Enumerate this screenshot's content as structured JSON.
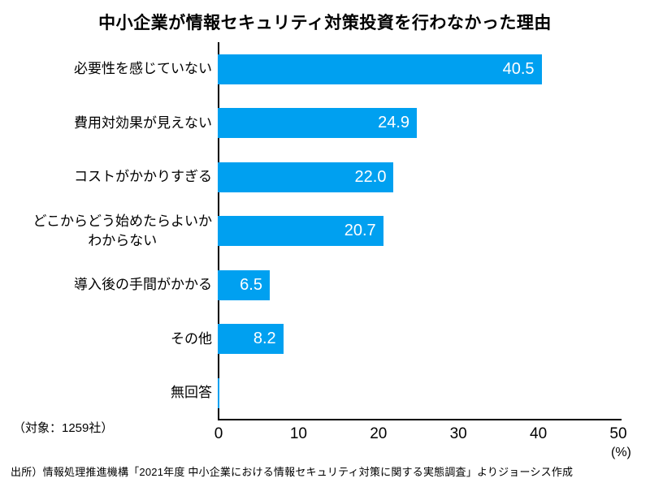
{
  "title": "中小企業が情報セキュリティ対策投資を行わなかった理由",
  "note_target": "（対象：1259社）",
  "source": "出所）情報処理推進機構「2021年度 中小企業における情報セキュリティ対策に関する実態調査」よりジョーシス作成",
  "colors": {
    "bar": "#00a0f0",
    "bar_label": "#ffffff",
    "axis": "#000000"
  },
  "chart_data": {
    "type": "bar",
    "orientation": "horizontal",
    "title": "中小企業が情報セキュリティ対策投資を行わなかった理由",
    "categories": [
      "必要性を感じていない",
      "費用対効果が見えない",
      "コストがかかりすぎる",
      "どこからどう始めたらよいか\nわからない",
      "導入後の手間がかかる",
      "その他",
      "無回答"
    ],
    "values": [
      40.5,
      24.9,
      22.0,
      20.7,
      6.5,
      8.2,
      0.2
    ],
    "value_labels": [
      "40.5",
      "24.9",
      "22.0",
      "20.7",
      "6.5",
      "8.2",
      ""
    ],
    "xlabel": "(%)",
    "xlim": [
      0,
      50
    ],
    "x_ticks": [
      0,
      10,
      20,
      30,
      40,
      50
    ],
    "grid": false,
    "legend": false
  }
}
